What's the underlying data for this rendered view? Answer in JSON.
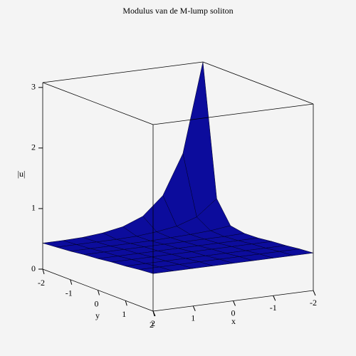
{
  "chart_data": {
    "type": "surface",
    "title": "Modulus van de M-lump soliton",
    "xlabel": "x",
    "ylabel": "y",
    "zlabel": "|u|",
    "x": [
      -2,
      -1.5,
      -1,
      -0.5,
      0,
      0.5,
      1,
      1.5,
      2
    ],
    "y": [
      -2,
      -1.5,
      -1,
      -0.5,
      0,
      0.5,
      1,
      1.5,
      2
    ],
    "z": [
      [
        3.08,
        1.61,
        0.96,
        0.66,
        0.53,
        0.47,
        0.44,
        0.43,
        0.43
      ],
      [
        0.91,
        0.65,
        0.54,
        0.49,
        0.46,
        0.45,
        0.45,
        0.45,
        0.45
      ],
      [
        0.55,
        0.51,
        0.49,
        0.48,
        0.47,
        0.47,
        0.47,
        0.47,
        0.47
      ],
      [
        0.51,
        0.5,
        0.5,
        0.5,
        0.5,
        0.5,
        0.5,
        0.5,
        0.5
      ],
      [
        0.52,
        0.52,
        0.52,
        0.52,
        0.52,
        0.52,
        0.52,
        0.52,
        0.52
      ],
      [
        0.55,
        0.55,
        0.55,
        0.55,
        0.55,
        0.55,
        0.55,
        0.55,
        0.55
      ],
      [
        0.57,
        0.57,
        0.57,
        0.57,
        0.57,
        0.57,
        0.57,
        0.57,
        0.57
      ],
      [
        0.6,
        0.6,
        0.6,
        0.6,
        0.6,
        0.6,
        0.6,
        0.6,
        0.6
      ],
      [
        0.62,
        0.62,
        0.62,
        0.62,
        0.62,
        0.62,
        0.62,
        0.62,
        0.62
      ]
    ],
    "xlim": [
      -2,
      2
    ],
    "ylim": [
      -2,
      2
    ],
    "zlim": [
      0,
      3.08
    ],
    "xticks": [
      -2,
      -1,
      0,
      1,
      2
    ],
    "yticks": [
      -2,
      -1,
      0,
      1,
      2
    ],
    "zticks": [
      0,
      1,
      2,
      3
    ],
    "color": "#0c0c9c"
  }
}
